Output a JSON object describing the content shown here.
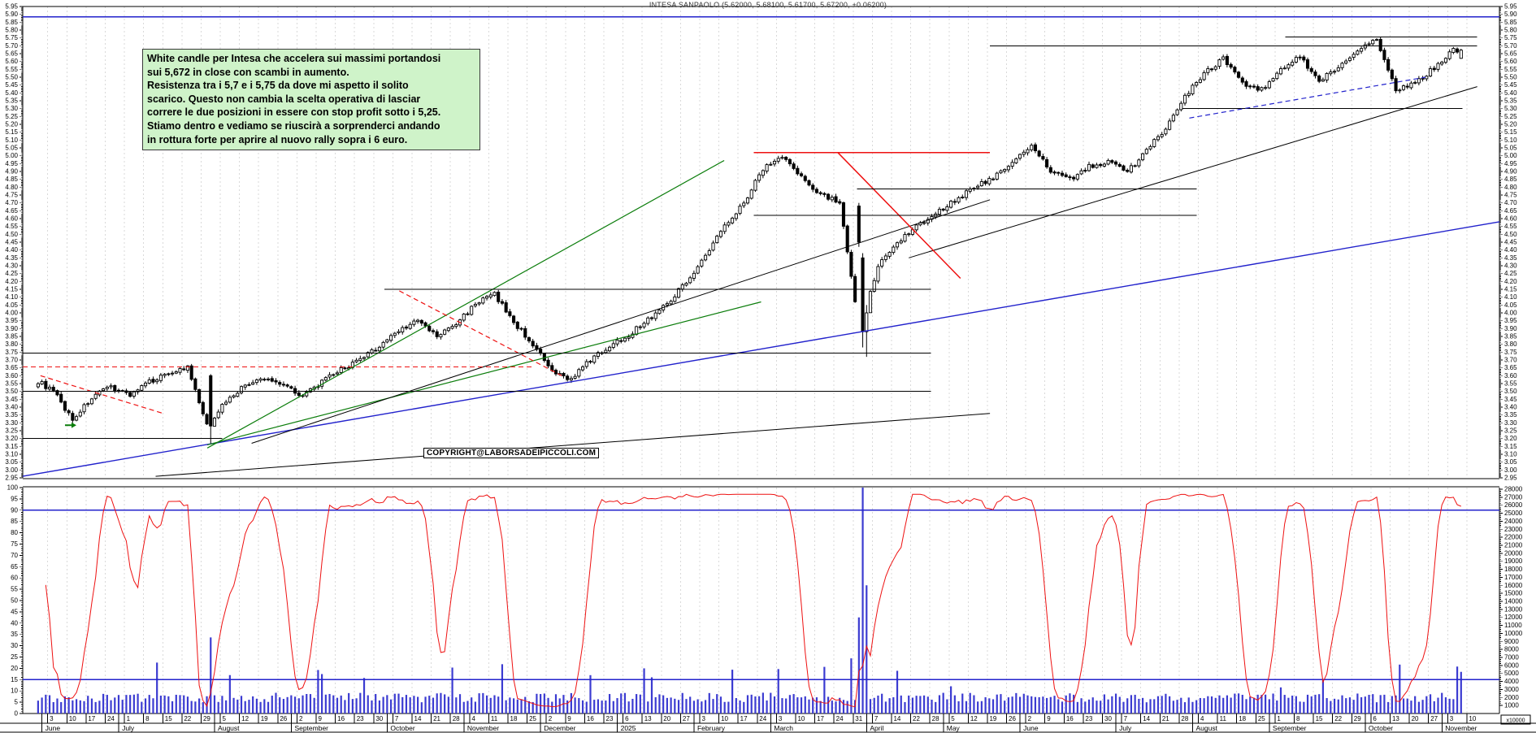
{
  "title": "INTESA SANPAOLO (5.62000, 5.68100, 5.61700, 5.67200, +0.06200)",
  "copyright": "COPYRIGHT@LABORSADEIPICCOLI.COM",
  "annotation": {
    "lines": [
      "White candle per Intesa che accelera sui massimi portandosi",
      "sui 5,672 in close con scambi in aumento.",
      "Resistenza tra i 5,7 e i 5,75 da dove mi aspetto il solito",
      "scarico. Questo non cambia la scelta operativa di lasciar",
      "correre le due posizioni in essere con stop profit sotto i 5,25.",
      "Stiamo dentro e vediamo se riuscirà a sorprenderci andando",
      "in rottura forte per aprire al nuovo rally sopra i 6 euro."
    ]
  },
  "colors": {
    "up_candle": "#ffffff",
    "down_candle": "#000000",
    "candle_stroke": "#000000",
    "volume_bar": "#3b3bd1",
    "indicator_line": "#ee1111",
    "trend_blue": "#2222cc",
    "trend_green": "#0b7d0b",
    "trend_red": "#ee1111",
    "trend_black": "#000000",
    "grid": "#d9d9d9",
    "annotation_bg": "#cff3c9"
  },
  "chart_data": {
    "type": "candlestick",
    "title": "INTESA SANPAOLO (5.62000, 5.68100, 5.61700, 5.67200, +0.06200)",
    "last_candle": {
      "open": 5.62,
      "high": 5.681,
      "low": 5.617,
      "close": 5.672,
      "change": "+0.06200"
    },
    "price_axis": {
      "min": 2.95,
      "max": 5.95,
      "step": 0.05,
      "sides": [
        "left",
        "right"
      ]
    },
    "indicator_axis": {
      "min": 0,
      "max": 100,
      "step": 5,
      "side": "left"
    },
    "volume_axis": {
      "min": 1000,
      "max": 28000,
      "step": 1000,
      "side": "right",
      "multiplier_label": "x10000"
    },
    "indicator_hlines": [
      90,
      15
    ],
    "price_hline_blue": 5.885,
    "months": [
      {
        "label": "June",
        "days": [
          3,
          10,
          17,
          24
        ]
      },
      {
        "label": "July",
        "days": [
          1,
          8,
          15,
          22,
          29
        ]
      },
      {
        "label": "August",
        "days": [
          5,
          12,
          19,
          26
        ]
      },
      {
        "label": "September",
        "days": [
          2,
          9,
          16,
          23,
          30
        ]
      },
      {
        "label": "October",
        "days": [
          7,
          14,
          21,
          28
        ]
      },
      {
        "label": "November",
        "days": [
          4,
          11,
          18,
          25
        ]
      },
      {
        "label": "December",
        "days": [
          2,
          9,
          16,
          23
        ]
      },
      {
        "label": "2025",
        "days": [
          6,
          13,
          20,
          27
        ]
      },
      {
        "label": "February",
        "days": [
          3,
          10,
          17,
          24
        ]
      },
      {
        "label": "March",
        "days": [
          3,
          10,
          17,
          24,
          31
        ]
      },
      {
        "label": "April",
        "days": [
          7,
          14,
          22,
          28
        ]
      },
      {
        "label": "May",
        "days": [
          5,
          12,
          19,
          26
        ]
      },
      {
        "label": "June",
        "days": [
          2,
          9,
          16,
          23,
          30
        ]
      },
      {
        "label": "July",
        "days": [
          7,
          14,
          21,
          28
        ]
      },
      {
        "label": "August",
        "days": [
          4,
          11,
          18,
          25
        ]
      },
      {
        "label": "September",
        "days": [
          1,
          8,
          15,
          22,
          29
        ]
      },
      {
        "label": "October",
        "days": [
          6,
          13,
          20,
          27
        ]
      },
      {
        "label": "November",
        "days": [
          3,
          10
        ]
      }
    ],
    "weekly_closes": [
      3.58,
      3.5,
      3.32,
      3.46,
      3.53,
      3.48,
      3.56,
      3.62,
      3.65,
      3.28,
      3.44,
      3.54,
      3.58,
      3.55,
      3.47,
      3.56,
      3.64,
      3.7,
      3.79,
      3.89,
      3.95,
      3.85,
      3.93,
      4.06,
      4.12,
      3.94,
      3.8,
      3.62,
      3.58,
      3.7,
      3.79,
      3.86,
      3.96,
      4.06,
      4.2,
      4.36,
      4.56,
      4.7,
      4.92,
      5.0,
      4.86,
      4.76,
      4.7,
      3.9,
      4.3,
      4.45,
      4.56,
      4.63,
      4.72,
      4.8,
      4.86,
      4.96,
      5.06,
      4.9,
      4.85,
      4.93,
      4.96,
      4.9,
      5.03,
      5.18,
      5.38,
      5.52,
      5.62,
      5.46,
      5.42,
      5.55,
      5.63,
      5.48,
      5.56,
      5.68,
      5.74,
      5.42,
      5.46,
      5.56,
      5.672
    ],
    "events": [
      {
        "week": 9,
        "day": 0,
        "open": 3.6,
        "high": 3.61,
        "low": 3.17,
        "close": 3.28,
        "volume": 9500
      },
      {
        "week": 42,
        "day": 4,
        "open": 4.68,
        "high": 4.7,
        "low": 4.42,
        "close": 4.45,
        "volume": 12000
      },
      {
        "week": 43,
        "day": 0,
        "open": 4.35,
        "high": 4.38,
        "low": 3.78,
        "close": 3.88,
        "volume": 28200
      },
      {
        "week": 43,
        "day": 1,
        "open": 3.88,
        "high": 4.05,
        "low": 3.72,
        "close": 4.0,
        "volume": 16000
      },
      {
        "week": 74,
        "day": 1,
        "open": 5.62,
        "high": 5.681,
        "low": 5.617,
        "close": 5.672,
        "volume": 5200
      }
    ],
    "overlays": [
      {
        "name": "blue-resistance",
        "x0": 0.0,
        "y0": 5.885,
        "x1": 1.0,
        "y1": 5.885,
        "color": "blue",
        "w": 1.6,
        "dash": false
      },
      {
        "name": "blue-long-trend",
        "x0": 0.0,
        "y0": 2.96,
        "x1": 1.0,
        "y1": 4.58,
        "color": "blue",
        "w": 1.4,
        "dash": false
      },
      {
        "name": "green-trend-steep",
        "x0": 0.125,
        "y0": 3.14,
        "x1": 0.475,
        "y1": 4.97,
        "color": "green",
        "w": 1.2,
        "dash": false
      },
      {
        "name": "green-trend-flat",
        "x0": 0.125,
        "y0": 3.16,
        "x1": 0.5,
        "y1": 4.07,
        "color": "green",
        "w": 1.2,
        "dash": false
      },
      {
        "name": "black-trend-a",
        "x0": 0.155,
        "y0": 3.17,
        "x1": 0.655,
        "y1": 4.72,
        "color": "black",
        "w": 1,
        "dash": false
      },
      {
        "name": "black-trend-b",
        "x0": 0.09,
        "y0": 2.96,
        "x1": 0.655,
        "y1": 3.36,
        "color": "black",
        "w": 1,
        "dash": false
      },
      {
        "name": "black-trend-c",
        "x0": 0.6,
        "y0": 4.35,
        "x1": 0.985,
        "y1": 5.44,
        "color": "black",
        "w": 1,
        "dash": false
      },
      {
        "name": "red-resistance",
        "x0": 0.495,
        "y0": 5.02,
        "x1": 0.655,
        "y1": 5.02,
        "color": "red",
        "w": 1.5,
        "dash": false
      },
      {
        "name": "red-crash-line",
        "x0": 0.552,
        "y0": 5.02,
        "x1": 0.635,
        "y1": 4.22,
        "color": "red",
        "w": 1.5,
        "dash": false
      },
      {
        "name": "red-dash-left",
        "x0": 0.012,
        "y0": 3.6,
        "x1": 0.095,
        "y1": 3.36,
        "color": "red",
        "w": 1.2,
        "dash": true
      },
      {
        "name": "red-dash-mid",
        "x0": 0.255,
        "y0": 4.14,
        "x1": 0.365,
        "y1": 3.6,
        "color": "red",
        "w": 1.2,
        "dash": true
      },
      {
        "name": "red-dash-horiz",
        "x0": 0.0,
        "y0": 3.655,
        "x1": 0.345,
        "y1": 3.655,
        "color": "red",
        "w": 1,
        "dash": true
      },
      {
        "name": "support-320",
        "x0": 0.0,
        "y0": 3.2,
        "x1": 0.135,
        "y1": 3.2,
        "color": "black",
        "w": 1,
        "dash": false
      },
      {
        "name": "support-350",
        "x0": 0.0,
        "y0": 3.5,
        "x1": 0.615,
        "y1": 3.5,
        "color": "black",
        "w": 1,
        "dash": false
      },
      {
        "name": "support-3745",
        "x0": 0.0,
        "y0": 3.745,
        "x1": 0.615,
        "y1": 3.745,
        "color": "black",
        "w": 1,
        "dash": false
      },
      {
        "name": "support-415",
        "x0": 0.245,
        "y0": 4.15,
        "x1": 0.615,
        "y1": 4.15,
        "color": "black",
        "w": 1,
        "dash": false
      },
      {
        "name": "support-462",
        "x0": 0.495,
        "y0": 4.62,
        "x1": 0.795,
        "y1": 4.62,
        "color": "black",
        "w": 1,
        "dash": false
      },
      {
        "name": "support-479",
        "x0": 0.565,
        "y0": 4.79,
        "x1": 0.795,
        "y1": 4.79,
        "color": "black",
        "w": 1,
        "dash": false
      },
      {
        "name": "resistance-530",
        "x0": 0.785,
        "y0": 5.3,
        "x1": 0.975,
        "y1": 5.3,
        "color": "black",
        "w": 1,
        "dash": false
      },
      {
        "name": "resistance-570",
        "x0": 0.655,
        "y0": 5.7,
        "x1": 0.985,
        "y1": 5.7,
        "color": "black",
        "w": 1,
        "dash": false
      },
      {
        "name": "resistance-5755",
        "x0": 0.855,
        "y0": 5.755,
        "x1": 0.985,
        "y1": 5.755,
        "color": "black",
        "w": 1,
        "dash": false
      },
      {
        "name": "blue-dash-right",
        "x0": 0.79,
        "y0": 5.24,
        "x1": 0.95,
        "y1": 5.5,
        "color": "blue",
        "w": 1.2,
        "dash": true
      }
    ],
    "marker": {
      "name": "green-arrow-marker",
      "x": 0.033,
      "y": 3.285,
      "color": "green"
    }
  }
}
